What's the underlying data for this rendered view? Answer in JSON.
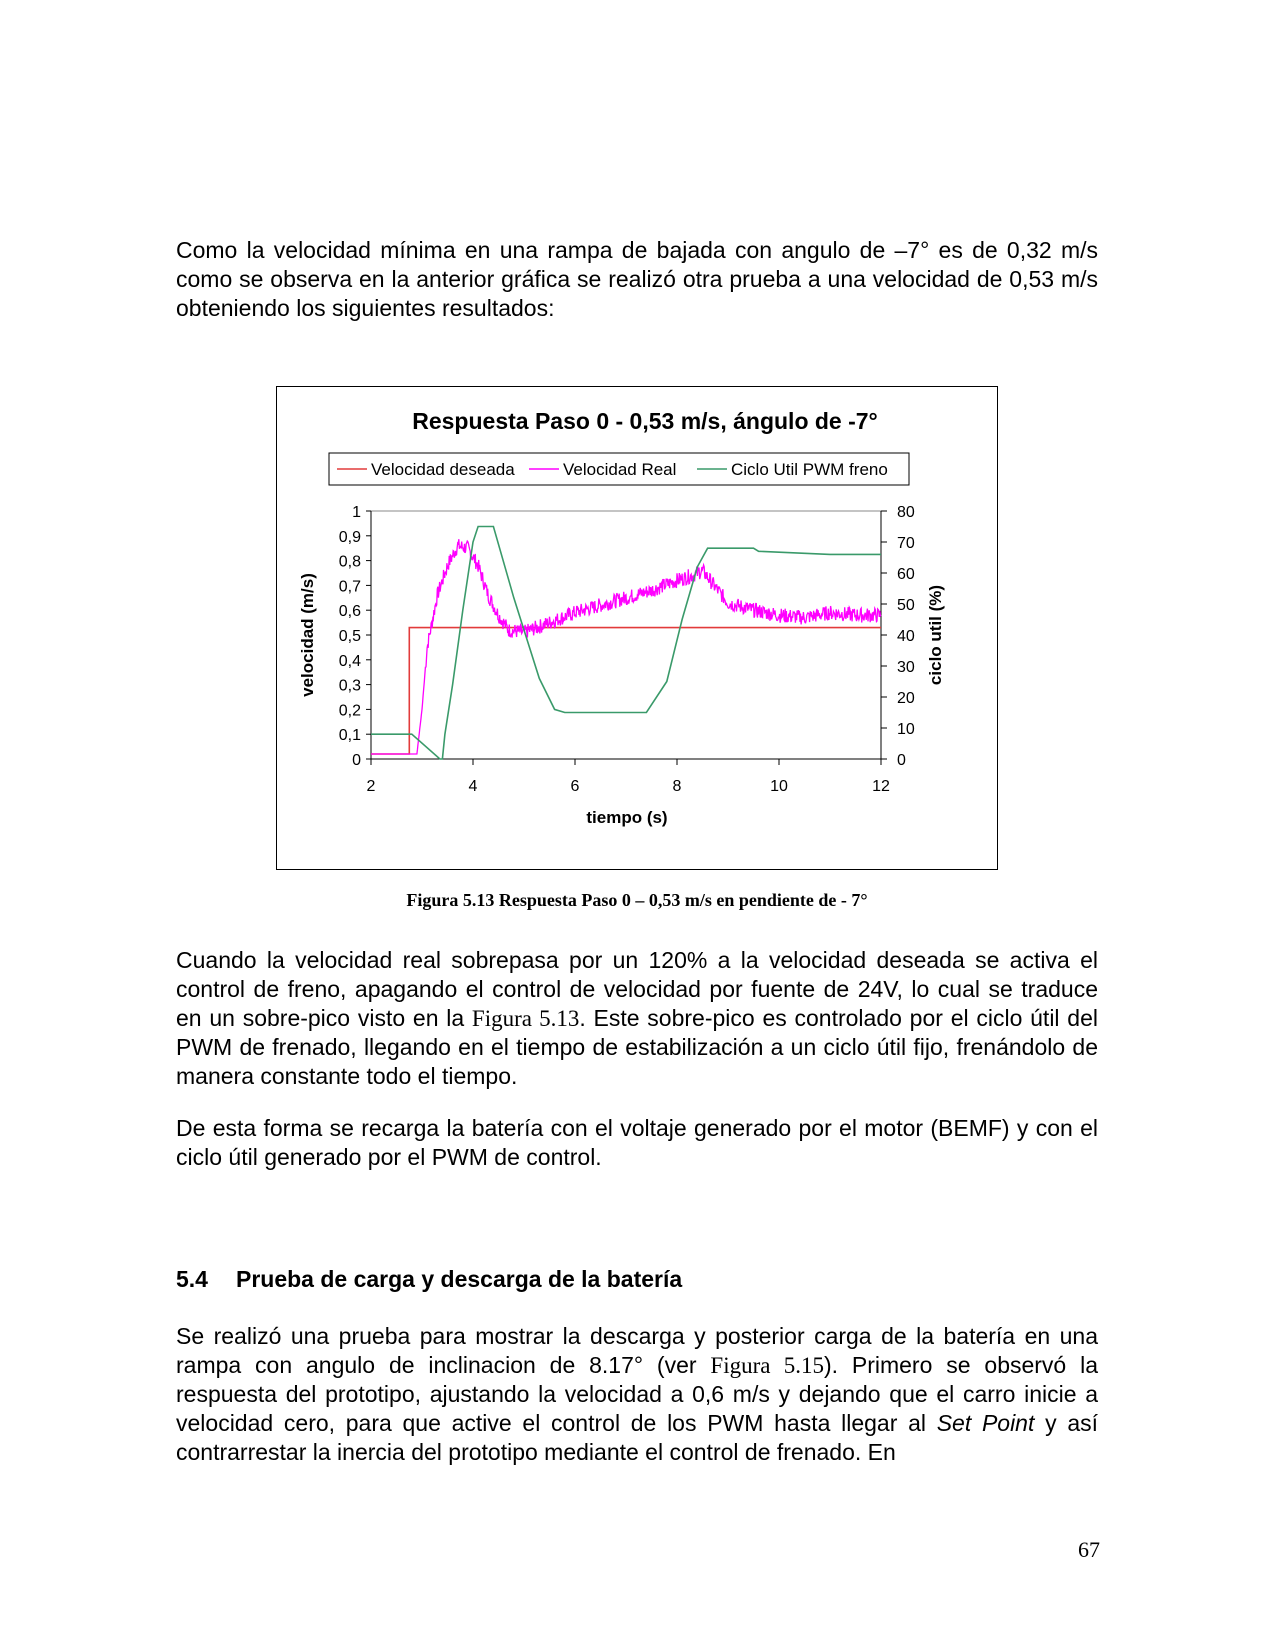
{
  "paragraphs": {
    "p1": "Como la velocidad mínima en una rampa de bajada con angulo de –7° es de 0,32 m/s como se observa en la anterior gráfica se realizó otra prueba a una velocidad de 0,53 m/s obteniendo los siguientes resultados:",
    "p2_a": "Cuando la velocidad real sobrepasa por un 120% a la velocidad deseada se activa el control de freno, apagando el control de velocidad por fuente de 24V, lo cual se traduce en un sobre-pico visto en la ",
    "p2_ref": "Figura 5.13",
    "p2_b": ". Este sobre-pico es controlado por el ciclo útil del PWM de frenado, llegando en el tiempo de estabilización a un ciclo útil fijo, frenándolo de manera constante todo el tiempo.",
    "p3": "De esta forma se recarga la batería con el voltaje generado por el motor (BEMF) y con el ciclo útil generado por el PWM de control.",
    "p4_a": "Se realizó una prueba para mostrar la descarga y posterior carga de la batería en una rampa con angulo de inclinacion de 8.17° (ver ",
    "p4_ref": "Figura 5.15",
    "p4_b": "). Primero se observó la respuesta del prototipo, ajustando la velocidad a 0,6 m/s y dejando que el carro inicie a velocidad cero, para que active el control de los PWM hasta llegar al ",
    "p4_it1": "Set Point",
    "p4_c": " y así contrarrestar la inercia del prototipo mediante el control de frenado.  En"
  },
  "caption": "Figura 5.13 Respuesta Paso 0 – 0,53 m/s en pendiente de - 7°",
  "section": {
    "number": "5.4",
    "title": "Prueba de carga y descarga de la batería"
  },
  "page_number": "67",
  "chart_data": {
    "type": "line",
    "title": "Respuesta Paso 0 - 0,53 m/s, ángulo de -7°",
    "xlabel": "tiempo (s)",
    "ylabel": "velocidad (m/s)",
    "y2label": "ciclo util (%)",
    "xlim": [
      2,
      12
    ],
    "ylim": [
      0,
      1
    ],
    "y2lim": [
      0,
      80
    ],
    "xticks": [
      "2",
      "4",
      "6",
      "8",
      "10",
      "12"
    ],
    "yticks": [
      "0",
      "0,1",
      "0,2",
      "0,3",
      "0,4",
      "0,5",
      "0,6",
      "0,7",
      "0,8",
      "0,9",
      "1"
    ],
    "y2ticks": [
      "0",
      "10",
      "20",
      "30",
      "40",
      "50",
      "60",
      "70",
      "80"
    ],
    "legend_position": "top",
    "series": [
      {
        "name": "Velocidad deseada",
        "axis": "left",
        "color": "#e23b3b",
        "x": [
          2,
          2.75,
          2.75,
          12
        ],
        "y": [
          0.02,
          0.02,
          0.53,
          0.53
        ]
      },
      {
        "name": "Velocidad Real",
        "axis": "left",
        "color": "#ff00ff",
        "noise": 0.03,
        "x": [
          2,
          2.9,
          3.0,
          3.1,
          3.3,
          3.5,
          3.7,
          3.9,
          4.1,
          4.3,
          4.5,
          4.7,
          5.0,
          5.5,
          6.0,
          6.5,
          7.0,
          7.5,
          8.0,
          8.3,
          8.5,
          8.8,
          9.0,
          9.5,
          10.0,
          10.5,
          11.0,
          11.5,
          12
        ],
        "y": [
          0.02,
          0.02,
          0.2,
          0.45,
          0.66,
          0.78,
          0.86,
          0.85,
          0.78,
          0.66,
          0.58,
          0.52,
          0.51,
          0.55,
          0.59,
          0.62,
          0.65,
          0.68,
          0.72,
          0.74,
          0.76,
          0.68,
          0.63,
          0.6,
          0.58,
          0.57,
          0.59,
          0.58,
          0.58
        ]
      },
      {
        "name": "Ciclo Util PWM freno",
        "axis": "right",
        "color": "#3a9a6a",
        "x": [
          2,
          2.7,
          2.8,
          3.35,
          3.4,
          3.45,
          3.6,
          3.8,
          4.0,
          4.1,
          4.4,
          4.8,
          5.3,
          5.6,
          5.8,
          7.4,
          7.8,
          8.1,
          8.4,
          8.6,
          9.5,
          9.6,
          11.0,
          12
        ],
        "y": [
          8,
          8,
          8,
          0,
          0,
          8,
          24,
          48,
          70,
          75,
          75,
          52,
          26,
          16,
          15,
          15,
          25,
          45,
          62,
          68,
          68,
          67,
          66,
          66
        ]
      }
    ]
  }
}
